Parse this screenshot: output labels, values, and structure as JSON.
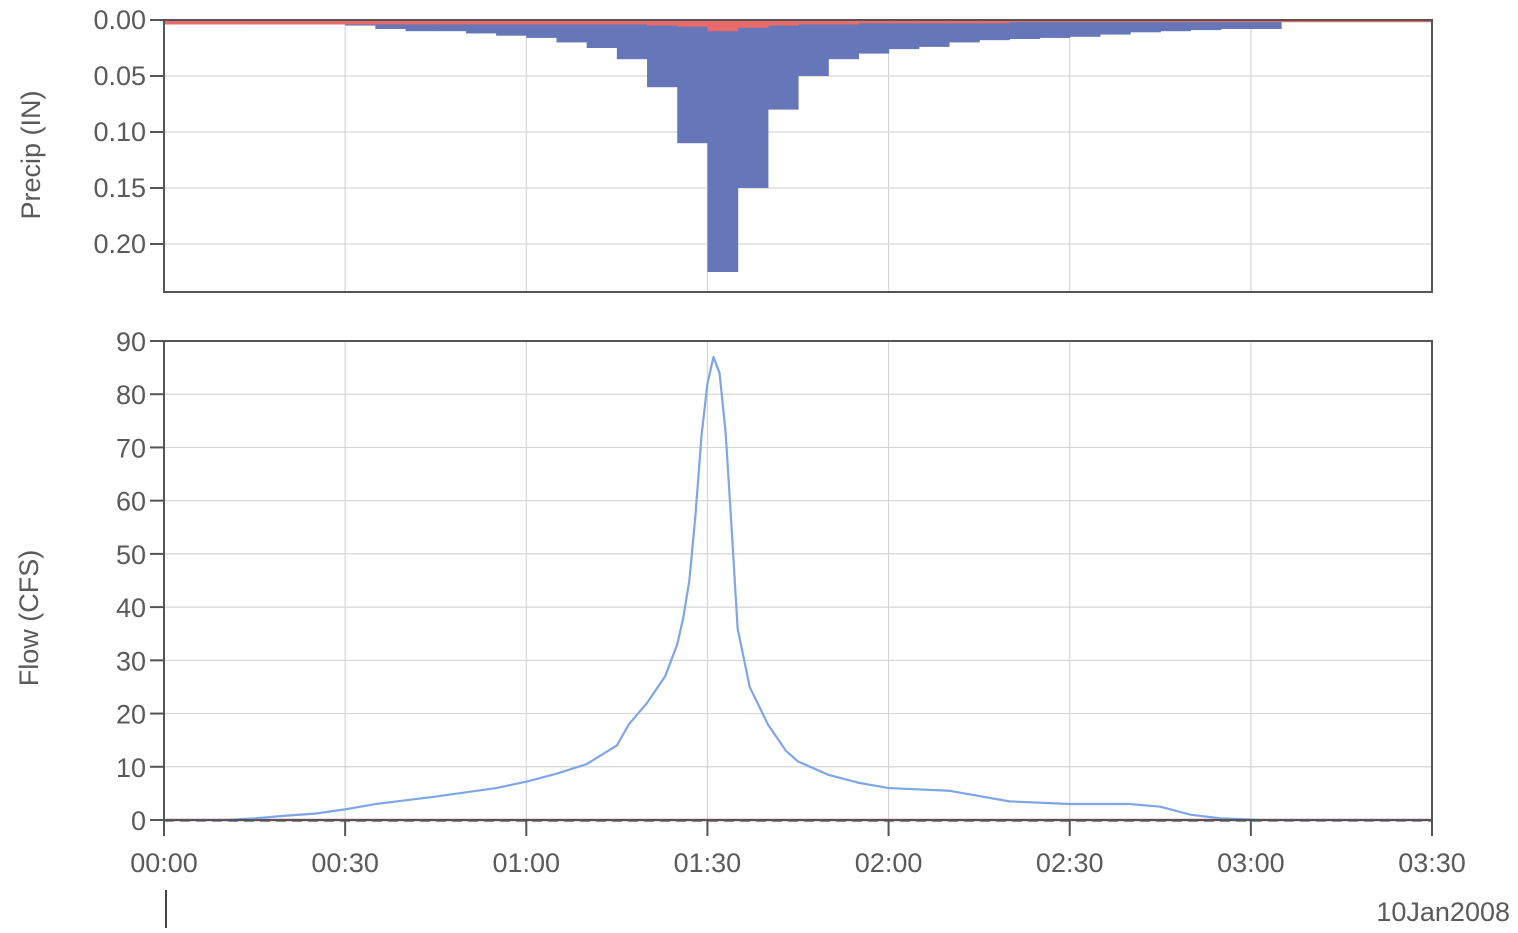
{
  "chart_data": [
    {
      "type": "bar",
      "ylabel": "Precip (IN)",
      "yticks": [
        "0.00",
        "0.05",
        "0.10",
        "0.15",
        "0.20"
      ],
      "ylim": [
        0,
        0.24
      ],
      "y_inverted": true,
      "grid": true,
      "colors": {
        "excess": "#6577b8",
        "loss": "#e86a6a"
      },
      "x_minutes": [
        0,
        5,
        10,
        15,
        20,
        25,
        30,
        35,
        40,
        45,
        50,
        55,
        60,
        65,
        70,
        75,
        80,
        85,
        90,
        95,
        100,
        105,
        110,
        115,
        120,
        125,
        130,
        135,
        140,
        145,
        150,
        155,
        160,
        165,
        170,
        175,
        180,
        185,
        210
      ],
      "series": [
        {
          "values": [
            0.002,
            0.002,
            0.003,
            0.004,
            0.004,
            0.004,
            0.005,
            0.008,
            0.01,
            0.01,
            0.012,
            0.014,
            0.016,
            0.02,
            0.025,
            0.035,
            0.06,
            0.11,
            0.225,
            0.15,
            0.08,
            0.05,
            0.035,
            0.03,
            0.026,
            0.024,
            0.02,
            0.018,
            0.017,
            0.016,
            0.015,
            0.013,
            0.011,
            0.01,
            0.009,
            0.008,
            0.008,
            0.0
          ]
        },
        {
          "values": [
            0.004,
            0.004,
            0.004,
            0.004,
            0.004,
            0.004,
            0.004,
            0.004,
            0.004,
            0.004,
            0.004,
            0.004,
            0.004,
            0.004,
            0.004,
            0.004,
            0.005,
            0.006,
            0.01,
            0.007,
            0.005,
            0.004,
            0.004,
            0.003,
            0.003,
            0.003,
            0.003,
            0.003,
            0.002,
            0.002,
            0.002,
            0.002,
            0.002,
            0.002,
            0.002,
            0.002,
            0.002,
            0.002
          ]
        }
      ]
    },
    {
      "type": "line",
      "ylabel": "Flow (CFS)",
      "yticks": [
        "90",
        "80",
        "70",
        "60",
        "50",
        "40",
        "30",
        "20",
        "10",
        "0"
      ],
      "ylim": [
        0,
        90
      ],
      "grid": true,
      "xticks": [
        "00:00",
        "00:30",
        "01:00",
        "01:30",
        "02:00",
        "02:30",
        "03:00",
        "03:30"
      ],
      "date": "10Jan2008",
      "colors": {
        "flow": "#7ea6e6",
        "baseline": "#e86a6a"
      },
      "series": [
        {
          "x": [
            0,
            10,
            15,
            20,
            25,
            30,
            35,
            40,
            45,
            50,
            55,
            60,
            65,
            70,
            75,
            77,
            80,
            83,
            85,
            86,
            87,
            88,
            89,
            90,
            91,
            92,
            93,
            94,
            95,
            97,
            100,
            103,
            105,
            110,
            115,
            120,
            130,
            140,
            150,
            160,
            165,
            170,
            175,
            180,
            181,
            182,
            184,
            186,
            190,
            210
          ],
          "y": [
            0,
            0,
            0.3,
            0.8,
            1.2,
            2,
            3,
            3.7,
            4.4,
            5.2,
            6,
            7.2,
            8.7,
            10.5,
            14,
            18,
            22,
            27,
            33,
            38,
            45,
            57,
            72,
            82,
            87,
            84,
            73,
            55,
            36,
            25,
            18,
            13,
            11,
            8.5,
            7,
            6,
            5.5,
            3.5,
            3,
            3,
            2.5,
            1,
            0.3,
            0.1,
            0.05,
            0,
            0,
            0,
            0,
            0
          ]
        },
        {
          "x": [
            0,
            210
          ],
          "y": [
            0,
            0
          ]
        }
      ]
    }
  ]
}
